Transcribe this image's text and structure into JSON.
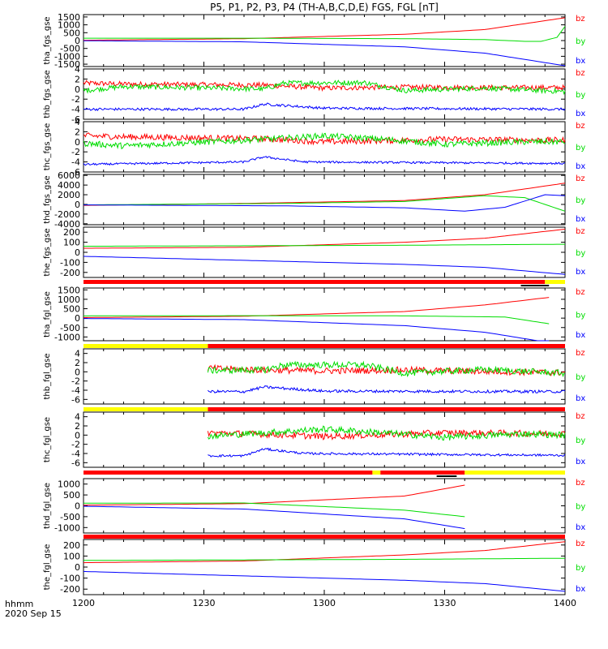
{
  "colors": {
    "bx": "#0000ff",
    "by": "#00dd00",
    "bz": "#ff0000",
    "bar_red": "#ff0000",
    "bar_yellow": "#ffff00",
    "bar_black": "#000000"
  },
  "chart_data": {
    "type": "line",
    "title": "P5, P1, P2, P3, P4 (TH-A,B,C,D,E) FGS, FGL [nT]",
    "x_ticks": [
      "1200",
      "1230",
      "1300",
      "1330",
      "1400"
    ],
    "x_label": "hhmm",
    "date_label": "2020 Sep 15",
    "xlim_minutes": [
      0,
      120
    ],
    "panels": [
      {
        "ylabel": "tha_fgs_gse",
        "ylim": [
          -1650,
          1650
        ],
        "yticks": [
          "1500",
          "1000",
          "500",
          "0",
          "-500",
          "-1000",
          "-1500"
        ],
        "xstart": 0,
        "xend": 120,
        "series": [
          {
            "name": "bz",
            "color": "#ff0000",
            "points": [
              [
                0,
                20
              ],
              [
                40,
                120
              ],
              [
                80,
                400
              ],
              [
                100,
                700
              ],
              [
                120,
                1450
              ]
            ]
          },
          {
            "name": "by",
            "color": "#00dd00",
            "points": [
              [
                0,
                150
              ],
              [
                40,
                150
              ],
              [
                80,
                120
              ],
              [
                100,
                60
              ],
              [
                110,
                -50
              ],
              [
                114,
                -50
              ],
              [
                118,
                200
              ],
              [
                120,
                900
              ]
            ]
          },
          {
            "name": "bx",
            "color": "#0000ff",
            "points": [
              [
                0,
                -10
              ],
              [
                40,
                -80
              ],
              [
                80,
                -400
              ],
              [
                100,
                -800
              ],
              [
                120,
                -1600
              ]
            ]
          }
        ]
      },
      {
        "ylabel": "thb_fgs_gse",
        "ylim": [
          -6,
          4
        ],
        "yticks": [
          "4",
          "2",
          "0",
          "-2",
          "-4",
          "-6"
        ],
        "xstart": 0,
        "xend": 120,
        "series": [
          {
            "name": "bz",
            "color": "#ff0000",
            "noise": 0.5,
            "points": [
              [
                0,
                1.2
              ],
              [
                10,
                1
              ],
              [
                45,
                0.8
              ],
              [
                60,
                0.2
              ],
              [
                80,
                0.4
              ],
              [
                100,
                0.3
              ],
              [
                120,
                0.3
              ]
            ]
          },
          {
            "name": "by",
            "color": "#00dd00",
            "noise": 0.5,
            "points": [
              [
                0,
                -0.3
              ],
              [
                10,
                0.5
              ],
              [
                45,
                0
              ],
              [
                50,
                1.2
              ],
              [
                70,
                1.3
              ],
              [
                80,
                -0.3
              ],
              [
                100,
                0.2
              ],
              [
                120,
                -0.5
              ]
            ]
          },
          {
            "name": "bx",
            "color": "#0000ff",
            "noise": 0.25,
            "points": [
              [
                0,
                -4
              ],
              [
                40,
                -4
              ],
              [
                45,
                -3
              ],
              [
                60,
                -3.8
              ],
              [
                120,
                -4
              ]
            ]
          }
        ]
      },
      {
        "ylabel": "thc_fgs_gse",
        "ylim": [
          -6,
          4
        ],
        "yticks": [
          "4",
          "2",
          "0",
          "-2",
          "-4",
          "-6"
        ],
        "xstart": 0,
        "xend": 120,
        "series": [
          {
            "name": "bz",
            "color": "#ff0000",
            "noise": 0.6,
            "points": [
              [
                0,
                1.2
              ],
              [
                10,
                1
              ],
              [
                45,
                0.6
              ],
              [
                60,
                0
              ],
              [
                90,
                0.5
              ],
              [
                120,
                0.3
              ]
            ]
          },
          {
            "name": "by",
            "color": "#00dd00",
            "noise": 0.6,
            "points": [
              [
                0,
                -0.3
              ],
              [
                10,
                -0.8
              ],
              [
                45,
                0.5
              ],
              [
                60,
                1.2
              ],
              [
                75,
                0.5
              ],
              [
                90,
                -0.5
              ],
              [
                110,
                0
              ],
              [
                120,
                0
              ]
            ]
          },
          {
            "name": "bx",
            "color": "#0000ff",
            "noise": 0.2,
            "points": [
              [
                0,
                -4.5
              ],
              [
                40,
                -4
              ],
              [
                45,
                -3
              ],
              [
                55,
                -4
              ],
              [
                120,
                -4.3
              ]
            ]
          }
        ]
      },
      {
        "ylabel": "thd_fgs_gse",
        "ylim": [
          -4200,
          6200
        ],
        "yticks": [
          "6000",
          "4000",
          "2000",
          "0",
          "-2000",
          "-4000"
        ],
        "xstart": 0,
        "xend": 120,
        "series": [
          {
            "name": "bz",
            "color": "#ff0000",
            "points": [
              [
                0,
                -200
              ],
              [
                40,
                200
              ],
              [
                80,
                800
              ],
              [
                100,
                2000
              ],
              [
                120,
                4400
              ]
            ]
          },
          {
            "name": "by",
            "color": "#00dd00",
            "points": [
              [
                0,
                -100
              ],
              [
                50,
                200
              ],
              [
                80,
                600
              ],
              [
                100,
                1800
              ],
              [
                110,
                1400
              ],
              [
                120,
                -1400
              ]
            ]
          },
          {
            "name": "bx",
            "color": "#0000ff",
            "points": [
              [
                0,
                -100
              ],
              [
                50,
                -300
              ],
              [
                80,
                -700
              ],
              [
                95,
                -1400
              ],
              [
                105,
                -600
              ],
              [
                115,
                2000
              ],
              [
                120,
                1800
              ]
            ]
          }
        ]
      },
      {
        "ylabel": "the_fgs_gse",
        "ylim": [
          -250,
          250
        ],
        "yticks": [
          "200",
          "100",
          "0",
          "-100",
          "-200"
        ],
        "xstart": 0,
        "xend": 120,
        "series": [
          {
            "name": "bz",
            "color": "#ff0000",
            "points": [
              [
                0,
                40
              ],
              [
                40,
                50
              ],
              [
                80,
                100
              ],
              [
                100,
                140
              ],
              [
                120,
                230
              ]
            ]
          },
          {
            "name": "by",
            "color": "#00dd00",
            "points": [
              [
                0,
                60
              ],
              [
                40,
                65
              ],
              [
                80,
                70
              ],
              [
                120,
                80
              ]
            ]
          },
          {
            "name": "bx",
            "color": "#0000ff",
            "points": [
              [
                0,
                -40
              ],
              [
                40,
                -80
              ],
              [
                80,
                -120
              ],
              [
                100,
                -150
              ],
              [
                120,
                -220
              ]
            ]
          }
        ]
      },
      {
        "ylabel": "tha_fgl_gse",
        "ylim": [
          -1200,
          1600
        ],
        "yticks": [
          "1500",
          "1000",
          "500",
          "0",
          "-500",
          "-1000"
        ],
        "xstart": 0,
        "xend": 116,
        "series": [
          {
            "name": "bz",
            "color": "#ff0000",
            "points": [
              [
                0,
                30
              ],
              [
                40,
                100
              ],
              [
                80,
                350
              ],
              [
                100,
                700
              ],
              [
                116,
                1100
              ]
            ]
          },
          {
            "name": "by",
            "color": "#00dd00",
            "points": [
              [
                0,
                120
              ],
              [
                40,
                130
              ],
              [
                80,
                120
              ],
              [
                105,
                60
              ],
              [
                116,
                -300
              ]
            ]
          },
          {
            "name": "bx",
            "color": "#0000ff",
            "points": [
              [
                0,
                -20
              ],
              [
                40,
                -80
              ],
              [
                80,
                -400
              ],
              [
                100,
                -750
              ],
              [
                116,
                -1300
              ]
            ]
          }
        ]
      },
      {
        "ylabel": "thb_fgl_gse",
        "ylim": [
          -7,
          5
        ],
        "yticks": [
          "4",
          "2",
          "0",
          "-2",
          "-4",
          "-6"
        ],
        "xstart": 31,
        "xend": 120,
        "series": [
          {
            "name": "bz",
            "color": "#ff0000",
            "noise": 0.7,
            "points": [
              [
                31,
                0.8
              ],
              [
                45,
                0.4
              ],
              [
                60,
                0.2
              ],
              [
                80,
                0.4
              ],
              [
                120,
                -0.2
              ]
            ]
          },
          {
            "name": "by",
            "color": "#00dd00",
            "noise": 0.7,
            "points": [
              [
                31,
                0.3
              ],
              [
                45,
                0.4
              ],
              [
                50,
                1.5
              ],
              [
                70,
                1.5
              ],
              [
                80,
                -0.3
              ],
              [
                100,
                0.5
              ],
              [
                120,
                -0.3
              ]
            ]
          },
          {
            "name": "bx",
            "color": "#0000ff",
            "noise": 0.3,
            "points": [
              [
                31,
                -4.3
              ],
              [
                40,
                -4.3
              ],
              [
                45,
                -3.3
              ],
              [
                60,
                -4.2
              ],
              [
                120,
                -4.3
              ]
            ]
          }
        ]
      },
      {
        "ylabel": "thc_fgl_gse",
        "ylim": [
          -7,
          5
        ],
        "yticks": [
          "4",
          "2",
          "0",
          "-2",
          "-4",
          "-6"
        ],
        "xstart": 31,
        "xend": 120,
        "series": [
          {
            "name": "bz",
            "color": "#ff0000",
            "noise": 0.7,
            "points": [
              [
                31,
                0.5
              ],
              [
                45,
                0.2
              ],
              [
                60,
                -0.3
              ],
              [
                90,
                0.5
              ],
              [
                120,
                0.3
              ]
            ]
          },
          {
            "name": "by",
            "color": "#00dd00",
            "noise": 0.7,
            "points": [
              [
                31,
                -0.2
              ],
              [
                45,
                0.5
              ],
              [
                60,
                1.3
              ],
              [
                75,
                0.5
              ],
              [
                90,
                -0.5
              ],
              [
                110,
                0.3
              ],
              [
                120,
                0
              ]
            ]
          },
          {
            "name": "bx",
            "color": "#0000ff",
            "noise": 0.25,
            "points": [
              [
                31,
                -4.5
              ],
              [
                40,
                -4.5
              ],
              [
                45,
                -3
              ],
              [
                55,
                -4
              ],
              [
                120,
                -4.4
              ]
            ]
          }
        ]
      },
      {
        "ylabel": "thd_fgl_gse",
        "ylim": [
          -1250,
          1250
        ],
        "yticks": [
          "1000",
          "500",
          "0",
          "-500",
          "-1000"
        ],
        "xstart": 0,
        "xend": 95,
        "series": [
          {
            "name": "bz",
            "color": "#ff0000",
            "points": [
              [
                0,
                30
              ],
              [
                40,
                100
              ],
              [
                80,
                450
              ],
              [
                95,
                950
              ]
            ]
          },
          {
            "name": "by",
            "color": "#00dd00",
            "points": [
              [
                0,
                120
              ],
              [
                40,
                130
              ],
              [
                80,
                -200
              ],
              [
                95,
                -500
              ]
            ]
          },
          {
            "name": "bx",
            "color": "#0000ff",
            "points": [
              [
                0,
                -20
              ],
              [
                40,
                -150
              ],
              [
                80,
                -600
              ],
              [
                95,
                -1050
              ]
            ]
          }
        ]
      },
      {
        "ylabel": "the_fgl_gse",
        "ylim": [
          -250,
          250
        ],
        "yticks": [
          "200",
          "100",
          "0",
          "-100",
          "-200"
        ],
        "xstart": 0,
        "xend": 120,
        "series": [
          {
            "name": "bz",
            "color": "#ff0000",
            "points": [
              [
                0,
                40
              ],
              [
                40,
                55
              ],
              [
                80,
                110
              ],
              [
                100,
                150
              ],
              [
                120,
                230
              ]
            ]
          },
          {
            "name": "by",
            "color": "#00dd00",
            "points": [
              [
                0,
                60
              ],
              [
                40,
                65
              ],
              [
                80,
                70
              ],
              [
                120,
                80
              ]
            ]
          },
          {
            "name": "bx",
            "color": "#0000ff",
            "points": [
              [
                0,
                -40
              ],
              [
                40,
                -80
              ],
              [
                80,
                -120
              ],
              [
                100,
                -150
              ],
              [
                120,
                -220
              ]
            ]
          }
        ]
      }
    ]
  }
}
